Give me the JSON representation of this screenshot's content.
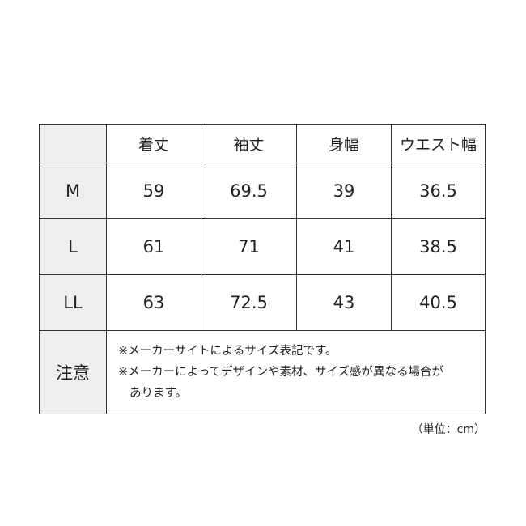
{
  "table": {
    "headers": [
      "",
      "着丈",
      "袖丈",
      "身幅",
      "ウエスト幅"
    ],
    "rows": [
      {
        "size": "M",
        "values": [
          "59",
          "69.5",
          "39",
          "36.5"
        ]
      },
      {
        "size": "L",
        "values": [
          "61",
          "71",
          "41",
          "38.5"
        ]
      },
      {
        "size": "LL",
        "values": [
          "63",
          "72.5",
          "43",
          "40.5"
        ]
      }
    ],
    "note_label": "注意",
    "notes": [
      "※メーカーサイトによるサイズ表記です。",
      "※メーカーによってデザインや素材、サイズ感が異なる場合が",
      "あります。"
    ]
  },
  "unit": "（単位：cm）",
  "colors": {
    "header_cell_bg": "#eeeeee",
    "border": "#333333"
  }
}
